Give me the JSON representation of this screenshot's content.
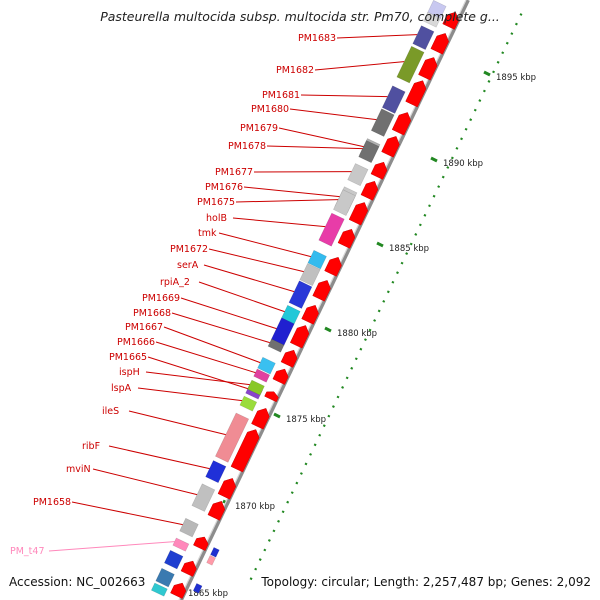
{
  "title": "Pasteurella multocida subsp. multocida str. Pm70, complete g...",
  "accession": "Accession: NC_002663",
  "topology": "Topology: circular; Length: 2,257,487 bp; Genes: 2,092",
  "colors": {
    "cds_forward": "#ff0000",
    "label_default": "#cc0000",
    "label_trna": "#ff88bb",
    "backbone": "#8a8a8a",
    "tick_green": "#228822"
  },
  "kbp_ticks": [
    {
      "label": "1895 kbp"
    },
    {
      "label": "1890 kbp"
    },
    {
      "label": "1885 kbp"
    },
    {
      "label": "1880 kbp"
    },
    {
      "label": "1875 kbp"
    },
    {
      "label": "1870 kbp"
    },
    {
      "label": "1865 kbp"
    }
  ],
  "gene_labels": [
    {
      "name": "PM1683",
      "color": "#cc0000",
      "fill": "#5050a0"
    },
    {
      "name": "PM1682",
      "color": "#cc0000",
      "fill": "#7a9a28"
    },
    {
      "name": "PM1681",
      "color": "#cc0000",
      "fill": "#5050a0"
    },
    {
      "name": "PM1680",
      "color": "#cc0000",
      "fill": "#707070"
    },
    {
      "name": "PM1679",
      "color": "#cc0000",
      "fill": "#b0b0b0"
    },
    {
      "name": "PM1678",
      "color": "#cc0000",
      "fill": "#707070"
    },
    {
      "name": "PM1677",
      "color": "#cc0000",
      "fill": "#c8c8c8"
    },
    {
      "name": "PM1676",
      "color": "#cc0000",
      "fill": "#c8c8c8"
    },
    {
      "name": "PM1675",
      "color": "#cc0000",
      "fill": "#c8c8c8"
    },
    {
      "name": "holB",
      "color": "#cc0000",
      "fill": "#e83ca8"
    },
    {
      "name": "tmk",
      "color": "#cc0000",
      "fill": "#33bbee"
    },
    {
      "name": "PM1672",
      "color": "#cc0000",
      "fill": "#c0c0c0"
    },
    {
      "name": "serA",
      "color": "#cc0000",
      "fill": "#2838d8"
    },
    {
      "name": "rpiA_2",
      "color": "#cc0000",
      "fill": "#22c8d8"
    },
    {
      "name": "PM1669",
      "color": "#cc0000",
      "fill": "#2020d0"
    },
    {
      "name": "PM1668",
      "color": "#cc0000",
      "fill": "#707070"
    },
    {
      "name": "PM1667",
      "color": "#cc0000",
      "fill": "#3ac0f0"
    },
    {
      "name": "PM1666",
      "color": "#cc0000",
      "fill": "#e040a0"
    },
    {
      "name": "PM1665",
      "color": "#cc0000",
      "fill": "#8844cc"
    },
    {
      "name": "ispH",
      "color": "#cc0000",
      "fill": "#88c828"
    },
    {
      "name": "lspA",
      "color": "#cc0000",
      "fill": "#9adc3c"
    },
    {
      "name": "ileS",
      "color": "#cc0000",
      "fill": "#f08c94"
    },
    {
      "name": "ribF",
      "color": "#cc0000",
      "fill": "#2030d8"
    },
    {
      "name": "mviN",
      "color": "#cc0000",
      "fill": "#c0c0c0"
    },
    {
      "name": "PM1658",
      "color": "#cc0000",
      "fill": "#b8b8b8"
    },
    {
      "name": "PM_t47",
      "color": "#ff88bb",
      "fill": "#ff88bb"
    }
  ]
}
